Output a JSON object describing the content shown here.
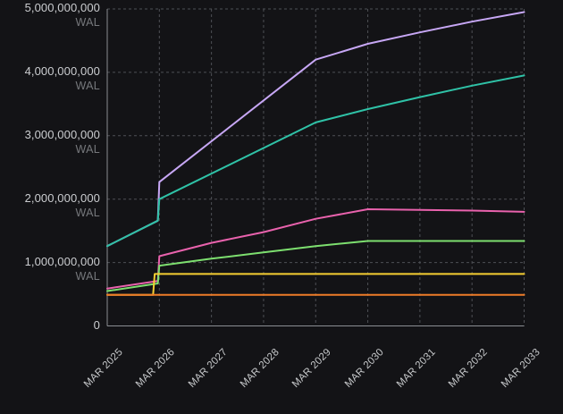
{
  "chart_data": {
    "type": "line",
    "title": "",
    "unit": "WAL",
    "legend": "none",
    "grid": "dashed",
    "ylim": [
      0,
      5000000000
    ],
    "x_tick_labels": [
      "MAR 2025",
      "MAR 2026",
      "MAR 2027",
      "MAR 2028",
      "MAR 2029",
      "MAR 2030",
      "MAR 2031",
      "MAR 2032",
      "MAR 2033"
    ],
    "y_ticks": [
      {
        "value": 5000000000,
        "label": "5,000,000,000",
        "unit_label": "WAL"
      },
      {
        "value": 4000000000,
        "label": "4,000,000,000",
        "unit_label": "WAL"
      },
      {
        "value": 3000000000,
        "label": "3,000,000,000",
        "unit_label": "WAL"
      },
      {
        "value": 2000000000,
        "label": "2,000,000,000",
        "unit_label": "WAL"
      },
      {
        "value": 1000000000,
        "label": "1,000,000,000",
        "unit_label": "WAL"
      },
      {
        "value": 0,
        "label": "0",
        "unit_label": ""
      }
    ],
    "series": [
      {
        "name": "purple-series",
        "color": "#c7a7f5",
        "points": [
          [
            0,
            1260000000
          ],
          [
            0.97,
            1660000000
          ],
          [
            1,
            2270000000
          ],
          [
            4,
            4200000000
          ],
          [
            5,
            4450000000
          ],
          [
            6,
            4630000000
          ],
          [
            7,
            4800000000
          ],
          [
            8,
            4950000000
          ]
        ]
      },
      {
        "name": "teal-series",
        "color": "#2fc2a7",
        "points": [
          [
            0,
            1260000000
          ],
          [
            0.97,
            1660000000
          ],
          [
            1,
            2000000000
          ],
          [
            4,
            3210000000
          ],
          [
            5,
            3420000000
          ],
          [
            6,
            3610000000
          ],
          [
            7,
            3790000000
          ],
          [
            8,
            3950000000
          ]
        ]
      },
      {
        "name": "pink-series",
        "color": "#e962ad",
        "points": [
          [
            0,
            590000000
          ],
          [
            0.97,
            710000000
          ],
          [
            1,
            1100000000
          ],
          [
            2,
            1310000000
          ],
          [
            3,
            1480000000
          ],
          [
            4,
            1690000000
          ],
          [
            5,
            1840000000
          ],
          [
            6,
            1830000000
          ],
          [
            7,
            1820000000
          ],
          [
            8,
            1800000000
          ]
        ]
      },
      {
        "name": "green-series",
        "color": "#7ddf6f",
        "points": [
          [
            0,
            550000000
          ],
          [
            0.97,
            670000000
          ],
          [
            1,
            950000000
          ],
          [
            2,
            1060000000
          ],
          [
            3,
            1160000000
          ],
          [
            4,
            1260000000
          ],
          [
            5,
            1340000000
          ],
          [
            8,
            1340000000
          ]
        ]
      },
      {
        "name": "yellow-series",
        "color": "#f6ce32",
        "points": [
          [
            0,
            490000000
          ],
          [
            0.88,
            490000000
          ],
          [
            0.91,
            820000000
          ],
          [
            8,
            820000000
          ]
        ]
      },
      {
        "name": "orange-series",
        "color": "#ee7c28",
        "points": [
          [
            0,
            490000000
          ],
          [
            8,
            490000000
          ]
        ]
      }
    ],
    "style": {
      "background": "#131316",
      "grid_color": "#4e5055",
      "axis_color": "#8b8e92",
      "tick_label_color": "#cbcdd0",
      "unit_label_color": "#76787c"
    }
  }
}
